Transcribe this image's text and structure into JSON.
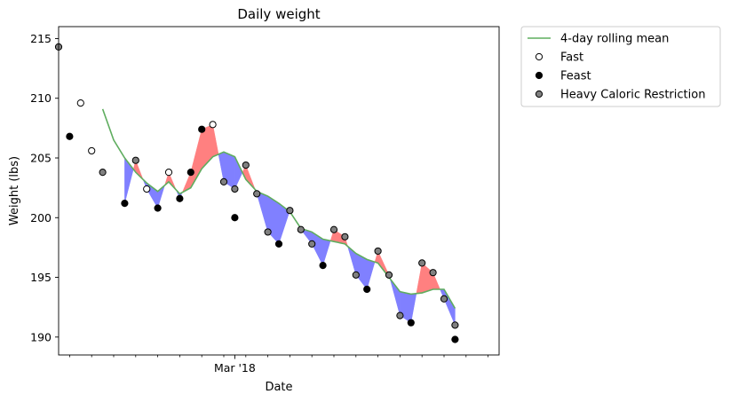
{
  "chart_data": {
    "type": "scatter",
    "title": "Daily weight",
    "xlabel": "Date",
    "ylabel": "Weight (lbs)",
    "xlim": [
      "2018-02-13",
      "2018-03-25"
    ],
    "ylim": [
      188.5,
      216
    ],
    "yticks": [
      190,
      195,
      200,
      205,
      210,
      215
    ],
    "xticks_major": [
      {
        "date": "2018-03-01",
        "label": "Mar '18"
      }
    ],
    "grid": false,
    "legend_position": "outside-top-right",
    "colors": {
      "rolling_mean": "#5fad5f",
      "above_mean_fill": "#ff8080",
      "below_mean_fill": "#8080ff",
      "fast_marker": "#ffffff",
      "feast_marker": "#000000",
      "restriction_marker": "#808080"
    },
    "legend": [
      {
        "label": "4-day rolling mean",
        "kind": "line"
      },
      {
        "label": "Fast",
        "kind": "marker",
        "category": "fast"
      },
      {
        "label": "Feast",
        "kind": "marker",
        "category": "feast"
      },
      {
        "label": "Heavy Caloric Restriction",
        "kind": "marker",
        "category": "restriction"
      }
    ],
    "series": [
      {
        "name": "4-day rolling mean",
        "type": "line",
        "points": [
          {
            "x": "2018-02-17",
            "y": 209.1
          },
          {
            "x": "2018-02-18",
            "y": 206.5
          },
          {
            "x": "2018-02-19",
            "y": 205.0
          },
          {
            "x": "2018-02-20",
            "y": 203.8
          },
          {
            "x": "2018-02-21",
            "y": 202.9
          },
          {
            "x": "2018-02-22",
            "y": 202.2
          },
          {
            "x": "2018-02-23",
            "y": 203.0
          },
          {
            "x": "2018-02-24",
            "y": 202.0
          },
          {
            "x": "2018-02-25",
            "y": 202.5
          },
          {
            "x": "2018-02-26",
            "y": 204.1
          },
          {
            "x": "2018-02-27",
            "y": 205.1
          },
          {
            "x": "2018-02-28",
            "y": 205.5
          },
          {
            "x": "2018-03-01",
            "y": 205.1
          },
          {
            "x": "2018-03-02",
            "y": 203.2
          },
          {
            "x": "2018-03-03",
            "y": 202.2
          },
          {
            "x": "2018-03-04",
            "y": 201.8
          },
          {
            "x": "2018-03-05",
            "y": 201.2
          },
          {
            "x": "2018-03-06",
            "y": 200.5
          },
          {
            "x": "2018-03-07",
            "y": 199.1
          },
          {
            "x": "2018-03-08",
            "y": 198.8
          },
          {
            "x": "2018-03-09",
            "y": 198.2
          },
          {
            "x": "2018-03-10",
            "y": 198.0
          },
          {
            "x": "2018-03-11",
            "y": 197.8
          },
          {
            "x": "2018-03-12",
            "y": 197.0
          },
          {
            "x": "2018-03-13",
            "y": 196.5
          },
          {
            "x": "2018-03-14",
            "y": 196.2
          },
          {
            "x": "2018-03-15",
            "y": 195.0
          },
          {
            "x": "2018-03-16",
            "y": 193.8
          },
          {
            "x": "2018-03-17",
            "y": 193.6
          },
          {
            "x": "2018-03-18",
            "y": 193.7
          },
          {
            "x": "2018-03-19",
            "y": 194.0
          },
          {
            "x": "2018-03-20",
            "y": 194.0
          },
          {
            "x": "2018-03-21",
            "y": 192.4
          }
        ]
      },
      {
        "name": "Fast",
        "type": "scatter",
        "category": "fast",
        "points": [
          {
            "x": "2018-02-15",
            "y": 209.6
          },
          {
            "x": "2018-02-16",
            "y": 205.6
          },
          {
            "x": "2018-02-21",
            "y": 202.4
          },
          {
            "x": "2018-02-23",
            "y": 203.8
          },
          {
            "x": "2018-02-27",
            "y": 207.8
          }
        ]
      },
      {
        "name": "Feast",
        "type": "scatter",
        "category": "feast",
        "points": [
          {
            "x": "2018-02-14",
            "y": 206.8
          },
          {
            "x": "2018-02-19",
            "y": 201.2
          },
          {
            "x": "2018-02-22",
            "y": 200.8
          },
          {
            "x": "2018-02-24",
            "y": 201.6
          },
          {
            "x": "2018-02-25",
            "y": 203.8
          },
          {
            "x": "2018-02-26",
            "y": 207.4
          },
          {
            "x": "2018-03-01",
            "y": 200.0
          },
          {
            "x": "2018-03-05",
            "y": 197.8
          },
          {
            "x": "2018-03-09",
            "y": 196.0
          },
          {
            "x": "2018-03-13",
            "y": 194.0
          },
          {
            "x": "2018-03-17",
            "y": 191.2
          },
          {
            "x": "2018-03-21",
            "y": 189.8
          }
        ]
      },
      {
        "name": "Heavy Caloric Restriction",
        "type": "scatter",
        "category": "restriction",
        "points": [
          {
            "x": "2018-02-13",
            "y": 214.3
          },
          {
            "x": "2018-02-17",
            "y": 203.8
          },
          {
            "x": "2018-02-20",
            "y": 204.8
          },
          {
            "x": "2018-02-28",
            "y": 203.0
          },
          {
            "x": "2018-03-01",
            "y": 202.4
          },
          {
            "x": "2018-03-02",
            "y": 204.4
          },
          {
            "x": "2018-03-03",
            "y": 202.0
          },
          {
            "x": "2018-03-04",
            "y": 198.8
          },
          {
            "x": "2018-03-06",
            "y": 200.6
          },
          {
            "x": "2018-03-07",
            "y": 199.0
          },
          {
            "x": "2018-03-08",
            "y": 197.8
          },
          {
            "x": "2018-03-10",
            "y": 199.0
          },
          {
            "x": "2018-03-11",
            "y": 198.4
          },
          {
            "x": "2018-03-12",
            "y": 195.2
          },
          {
            "x": "2018-03-14",
            "y": 197.2
          },
          {
            "x": "2018-03-15",
            "y": 195.2
          },
          {
            "x": "2018-03-16",
            "y": 191.8
          },
          {
            "x": "2018-03-18",
            "y": 196.2
          },
          {
            "x": "2018-03-19",
            "y": 195.4
          },
          {
            "x": "2018-03-20",
            "y": 193.2
          },
          {
            "x": "2018-03-21",
            "y": 191.0
          }
        ]
      }
    ]
  }
}
